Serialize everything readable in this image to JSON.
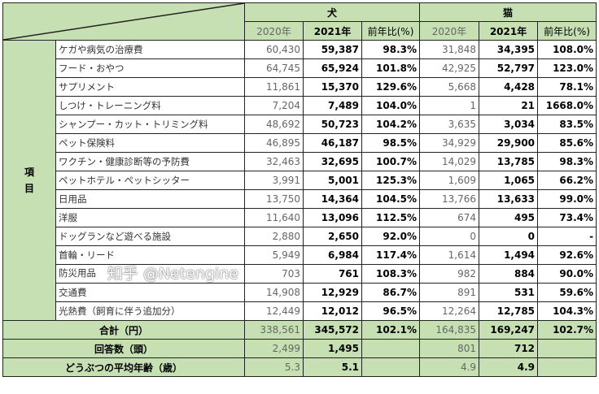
{
  "header": {
    "dog": "犬",
    "cat": "猫",
    "cols": [
      "2020年",
      "2021年",
      "前年比(%)",
      "2020年",
      "2021年",
      "前年比(%)"
    ]
  },
  "side_label": [
    "項",
    "目"
  ],
  "rows": [
    {
      "label": "ケガや病気の治療費",
      "d20": "60,430",
      "d21": "59,387",
      "dr": "98.3%",
      "c20": "31,848",
      "c21": "34,395",
      "cr": "108.0%"
    },
    {
      "label": "フード・おやつ",
      "d20": "64,745",
      "d21": "65,924",
      "dr": "101.8%",
      "c20": "42,925",
      "c21": "52,797",
      "cr": "123.0%"
    },
    {
      "label": "サプリメント",
      "d20": "11,861",
      "d21": "15,370",
      "dr": "129.6%",
      "c20": "5,668",
      "c21": "4,428",
      "cr": "78.1%"
    },
    {
      "label": "しつけ・トレーニング料",
      "d20": "7,204",
      "d21": "7,489",
      "dr": "104.0%",
      "c20": "1",
      "c21": "21",
      "cr": "1668.0%"
    },
    {
      "label": "シャンプー・カット・トリミング料",
      "d20": "48,692",
      "d21": "50,723",
      "dr": "104.2%",
      "c20": "3,635",
      "c21": "3,034",
      "cr": "83.5%"
    },
    {
      "label": "ペット保険料",
      "d20": "46,895",
      "d21": "46,187",
      "dr": "98.5%",
      "c20": "34,929",
      "c21": "29,900",
      "cr": "85.6%"
    },
    {
      "label": "ワクチン・健康診断等の予防費",
      "d20": "32,463",
      "d21": "32,695",
      "dr": "100.7%",
      "c20": "14,029",
      "c21": "13,785",
      "cr": "98.3%"
    },
    {
      "label": "ペットホテル・ペットシッター",
      "d20": "3,991",
      "d21": "5,001",
      "dr": "125.3%",
      "c20": "1,609",
      "c21": "1,065",
      "cr": "66.2%"
    },
    {
      "label": "日用品",
      "d20": "13,750",
      "d21": "14,364",
      "dr": "104.5%",
      "c20": "13,766",
      "c21": "13,633",
      "cr": "99.0%"
    },
    {
      "label": "洋服",
      "d20": "11,640",
      "d21": "13,096",
      "dr": "112.5%",
      "c20": "674",
      "c21": "495",
      "cr": "73.4%"
    },
    {
      "label": "ドッグランなど遊べる施設",
      "d20": "2,880",
      "d21": "2,650",
      "dr": "92.0%",
      "c20": "0",
      "c21": "0",
      "cr": "-"
    },
    {
      "label": "首輪・リード",
      "d20": "5,949",
      "d21": "6,984",
      "dr": "117.4%",
      "c20": "1,614",
      "c21": "1,494",
      "cr": "92.6%"
    },
    {
      "label": "防災用品",
      "d20": "703",
      "d21": "761",
      "dr": "108.3%",
      "c20": "982",
      "c21": "884",
      "cr": "90.0%"
    },
    {
      "label": "交通費",
      "d20": "14,908",
      "d21": "12,929",
      "dr": "86.7%",
      "c20": "891",
      "c21": "531",
      "cr": "59.6%"
    },
    {
      "label": "光熱費（飼育に伴う追加分）",
      "d20": "12,449",
      "d21": "12,012",
      "dr": "96.5%",
      "c20": "12,264",
      "c21": "12,785",
      "cr": "104.3%"
    }
  ],
  "summary": [
    {
      "label": "合計（円）",
      "d20": "338,561",
      "d21": "345,572",
      "dr": "102.1%",
      "c20": "164,835",
      "c21": "169,247",
      "cr": "102.7%"
    },
    {
      "label": "回答数（頭）",
      "d20": "2,499",
      "d21": "1,495",
      "dr": "",
      "c20": "801",
      "c21": "712",
      "cr": ""
    },
    {
      "label": "どうぶつの平均年齢（歳）",
      "d20": "5.3",
      "d21": "5.1",
      "dr": "",
      "c20": "4.9",
      "c21": "4.9",
      "cr": ""
    }
  ],
  "watermark": "知乎 @Netengine"
}
